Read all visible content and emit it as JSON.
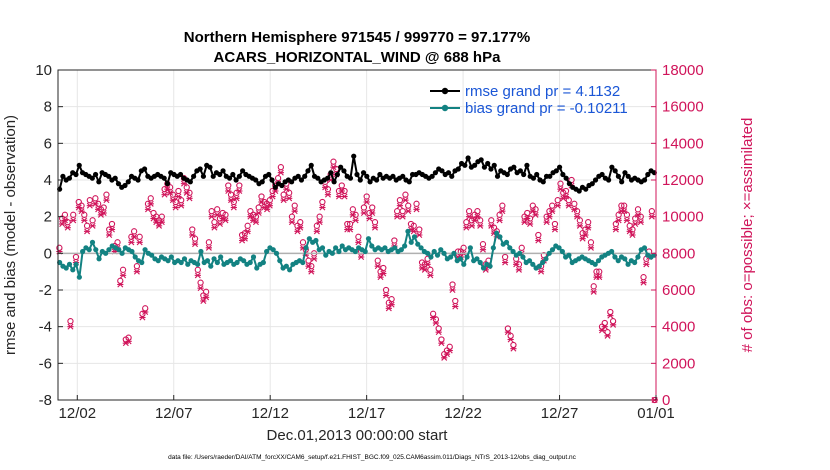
{
  "chart_data": {
    "type": "line",
    "title": "Northern Hemisphere 971545 / 999770 = 97.177%",
    "subtitle": "ACARS_HORIZONTAL_WIND @ 688 hPa",
    "xlabel": "Dec.01,2013 00:00:00 start",
    "ylabel_left": "rmse and bias (model - observation)",
    "ylabel_right": "# of obs: o=possible; ×=assimilated",
    "footnote": "data file: /Users/raeder/DAI/ATM_forcXX/CAM6_setup/f.e21.FHIST_BGC.f09_025.CAM6assim.011/Diags_NTrS_2013-12/obs_diag_output.nc",
    "x_ticks": [
      "12/02",
      "12/07",
      "12/12",
      "12/17",
      "12/22",
      "12/27",
      "01/01"
    ],
    "x_tick_days": [
      1,
      6,
      11,
      16,
      21,
      26,
      31
    ],
    "xlim_days": [
      0,
      31
    ],
    "ylim_left": [
      -8,
      10
    ],
    "yticks_left": [
      "-8",
      "-6",
      "-4",
      "-2",
      "0",
      "2",
      "4",
      "6",
      "8",
      "10"
    ],
    "ylim_right": [
      0,
      18000
    ],
    "yticks_right": [
      "0",
      "2000",
      "4000",
      "6000",
      "8000",
      "10000",
      "12000",
      "14000",
      "16000",
      "18000"
    ],
    "legend": [
      {
        "label": "rmse grand pr = 4.1132",
        "color": "#000000"
      },
      {
        "label": "bias grand pr = -0.10211",
        "color": "#138282"
      }
    ],
    "colors": {
      "rmse": "#000000",
      "bias": "#138282",
      "obs": "#d0145a",
      "zero_line": "#b0b0b0"
    },
    "rmse": [
      3.5,
      4.2,
      4.0,
      4.1,
      4.4,
      4.3,
      4.8,
      4.4,
      4.3,
      4.2,
      4.1,
      4.3,
      3.9,
      4.4,
      4.3,
      4.2,
      4.0,
      4.1,
      3.8,
      3.6,
      3.7,
      3.9,
      4.2,
      4.1,
      4.0,
      4.5,
      4.6,
      4.2,
      4.1,
      4.2,
      4.3,
      4.2,
      4.1,
      3.8,
      4.4,
      4.3,
      4.2,
      4.3,
      4.1,
      4.0,
      3.9,
      4.2,
      4.5,
      4.6,
      4.2,
      4.8,
      4.7,
      4.2,
      4.4,
      4.3,
      4.5,
      4.2,
      4.1,
      4.3,
      4.0,
      4.2,
      4.5,
      4.3,
      4.2,
      4.1,
      4.0,
      3.8,
      3.9,
      4.2,
      4.3,
      4.0,
      3.6,
      3.8,
      3.7,
      3.9,
      4.0,
      3.9,
      4.1,
      4.2,
      4.0,
      4.2,
      4.5,
      4.8,
      4.2,
      4.1,
      3.9,
      4.0,
      4.1,
      4.4,
      3.9,
      4.3,
      4.7,
      4.5,
      4.2,
      4.1,
      5.3,
      4.3,
      4.0,
      4.4,
      4.2,
      3.9,
      4.1,
      4.0,
      4.3,
      4.1,
      4.2,
      4.1,
      4.2,
      4.0,
      4.1,
      4.2,
      4.0,
      3.9,
      4.3,
      4.3,
      4.4,
      4.3,
      4.2,
      4.1,
      4.2,
      4.4,
      4.6,
      4.5,
      4.3,
      4.4,
      4.2,
      4.5,
      4.6,
      4.9,
      4.8,
      5.2,
      4.7,
      4.8,
      5.0,
      5.1,
      4.7,
      4.9,
      4.6,
      4.8,
      4.2,
      4.5,
      4.4,
      4.3,
      4.6,
      4.7,
      4.4,
      4.5,
      4.3,
      4.8,
      4.2,
      4.1,
      4.3,
      4.0,
      3.9,
      4.2,
      4.2,
      4.4,
      4.5,
      4.7,
      4.3,
      4.1,
      3.8,
      3.6,
      3.5,
      3.4,
      3.6,
      3.5,
      3.7,
      3.8,
      4.0,
      4.2,
      4.3,
      4.1,
      4.0,
      4.7,
      4.5,
      4.2,
      3.9,
      4.4,
      4.2,
      4.0,
      4.1,
      4.0,
      3.9,
      4.0,
      4.3,
      4.5,
      4.4
    ],
    "bias": [
      -0.5,
      -0.7,
      -0.8,
      -0.6,
      -0.9,
      -0.6,
      -1.3,
      0.1,
      0.3,
      0.2,
      0.6,
      0.2,
      -0.3,
      0.1,
      0.0,
      0.2,
      0.4,
      0.3,
      0.2,
      0.0,
      0.3,
      0.2,
      0.1,
      -0.2,
      -0.4,
      -0.5,
      0.2,
      0.0,
      -0.1,
      -0.3,
      -0.4,
      -0.2,
      -0.3,
      -0.4,
      -0.2,
      -0.5,
      -0.4,
      -0.5,
      -0.3,
      -0.6,
      -0.4,
      -0.5,
      -0.6,
      0.1,
      -0.5,
      -0.4,
      -0.7,
      -0.3,
      -0.5,
      -0.2,
      -0.6,
      -0.5,
      -0.4,
      -0.6,
      -0.5,
      -0.3,
      -0.4,
      -0.6,
      -0.5,
      -0.2,
      -0.8,
      -0.6,
      -0.5,
      0.1,
      0.3,
      0.2,
      0.0,
      -0.4,
      -0.8,
      -0.7,
      -0.9,
      -0.6,
      -0.5,
      -0.4,
      -0.5,
      0.3,
      0.8,
      0.6,
      0.7,
      0.2,
      0.3,
      -0.1,
      0.1,
      0.0,
      0.3,
      0.1,
      0.4,
      0.2,
      0.3,
      0.2,
      0.1,
      0.3,
      0.2,
      0.1,
      0.8,
      0.4,
      0.2,
      0.3,
      0.2,
      0.3,
      0.1,
      0.2,
      0.3,
      0.1,
      0.2,
      0.4,
      1.2,
      0.6,
      0.9,
      0.5,
      0.3,
      0.1,
      0.0,
      -0.2,
      0.1,
      -0.1,
      0.2,
      0.0,
      -0.3,
      -0.2,
      0.0,
      -0.4,
      -0.3,
      -0.6,
      -0.2,
      0.3,
      -0.4,
      -0.3,
      -0.5,
      -0.8,
      -0.6,
      -0.7,
      0.3,
      1.1,
      0.9,
      0.5,
      0.6,
      0.3,
      0.1,
      -0.1,
      0.0,
      -0.2,
      -0.5,
      -0.4,
      -0.6,
      -0.8,
      -0.7,
      -0.5,
      -0.3,
      0.0,
      0.2,
      0.4,
      0.3,
      0.1,
      -0.2,
      -0.1,
      -0.5,
      -0.4,
      -0.3,
      -0.2,
      -0.3,
      -0.4,
      -0.5,
      -0.6,
      -0.4,
      -0.2,
      -0.1,
      0.0,
      0.1,
      -0.2,
      -0.4,
      -0.2,
      -0.3,
      -0.6,
      -0.4,
      -0.5,
      -0.2,
      0.2,
      0.3,
      -0.1,
      -0.2,
      -0.1
    ],
    "obs_possible": [
      8300,
      9900,
      10100,
      9700,
      4300,
      10100,
      7800,
      10800,
      10600,
      10100,
      9500,
      10900,
      9800,
      11000,
      10700,
      10400,
      10500,
      11200,
      9300,
      9600,
      8400,
      8600,
      6500,
      7100,
      3300,
      3400,
      8900,
      9200,
      7300,
      8900,
      4700,
      5000,
      10700,
      11000,
      10200,
      10000,
      9800,
      10000,
      11500,
      11800,
      11600,
      11200,
      10800,
      11400,
      10900,
      12100,
      11600,
      11300,
      9300,
      8800,
      7100,
      6400,
      5700,
      5900,
      8600,
      10300,
      9700,
      10400,
      9900,
      10200,
      10100,
      11700,
      11200,
      10800,
      11300,
      11700,
      9000,
      9100,
      9500,
      10300,
      10100,
      10000,
      10500,
      11100,
      10800,
      10700,
      10900,
      11400,
      11700,
      12100,
      12700,
      11200,
      11800,
      11300,
      10000,
      10600,
      9500,
      9700,
      8600,
      8200,
      7600,
      7300,
      8000,
      9500,
      10000,
      10800,
      11900,
      11500,
      12300,
      13000,
      12600,
      11400,
      11700,
      11400,
      9600,
      9600,
      10400,
      10100,
      8900,
      8100,
      10500,
      11100,
      10200,
      10500,
      9700,
      7600,
      7000,
      7200,
      6000,
      5300,
      5500,
      8700,
      10300,
      10900,
      10300,
      11200,
      10600,
      9600,
      9500,
      10700,
      9300,
      7500,
      7400,
      7700,
      7100,
      4700,
      4400,
      3900,
      3300,
      2500,
      2700,
      2900,
      6300,
      5400,
      8100,
      8100,
      8300,
      9700,
      10300,
      9800,
      10100,
      10300,
      9800,
      8500,
      7400,
      7600,
      9800,
      9400,
      9200,
      10100,
      10600,
      7800,
      3900,
      3500,
      3000,
      7700,
      7400,
      8300,
      10000,
      10200,
      9900,
      10600,
      10400,
      9000,
      7300,
      7900,
      10000,
      10300,
      10600,
      9600,
      10900,
      11800,
      11300,
      11400,
      10900,
      12000,
      10700,
      10300,
      9800,
      9100,
      9300,
      9700,
      8600,
      6200,
      7000,
      7000,
      4000,
      4200,
      3700,
      4800,
      4300,
      9600,
      10100,
      10600,
      10600,
      10100,
      9500,
      9300,
      9900,
      10400,
      10000,
      6700,
      7700,
      8100,
      10300,
      0
    ],
    "obs_assimilated": [
      8100,
      9600,
      9800,
      9400,
      4000,
      9800,
      7500,
      10500,
      10300,
      9800,
      9200,
      10600,
      9500,
      10700,
      10400,
      10100,
      10200,
      10900,
      9000,
      9300,
      8100,
      8300,
      6300,
      6800,
      3100,
      3200,
      8600,
      8900,
      7000,
      8600,
      4500,
      4800,
      10400,
      10700,
      9900,
      9700,
      9500,
      9700,
      11200,
      11500,
      11300,
      10900,
      10500,
      11100,
      10600,
      11800,
      11300,
      11000,
      9000,
      8500,
      6800,
      6100,
      5400,
      5600,
      8300,
      10000,
      9400,
      10100,
      9600,
      9900,
      9800,
      11400,
      10900,
      10500,
      11000,
      11400,
      8700,
      8800,
      9200,
      10000,
      9800,
      9700,
      10200,
      10800,
      10500,
      10400,
      10600,
      11100,
      11400,
      11800,
      12400,
      10900,
      11500,
      11000,
      9700,
      10300,
      9200,
      9400,
      8300,
      7900,
      7300,
      7000,
      7700,
      9200,
      9700,
      10500,
      11600,
      11200,
      12000,
      12700,
      12300,
      11100,
      11400,
      11100,
      9300,
      9300,
      10100,
      9800,
      8600,
      7800,
      10200,
      10800,
      9900,
      10200,
      9400,
      7300,
      6700,
      6900,
      5700,
      5000,
      5200,
      8400,
      10000,
      10600,
      10000,
      10900,
      10300,
      9300,
      9200,
      10400,
      9000,
      7200,
      7100,
      7400,
      6800,
      4500,
      4200,
      3700,
      3100,
      2300,
      2500,
      2700,
      6000,
      5100,
      7800,
      7800,
      8000,
      9400,
      10000,
      9500,
      9800,
      10000,
      9500,
      8200,
      7100,
      7300,
      9500,
      9100,
      8900,
      9800,
      10300,
      7500,
      3700,
      3300,
      2800,
      7400,
      7100,
      8000,
      9700,
      9900,
      9600,
      10300,
      10100,
      8700,
      7000,
      7600,
      9700,
      10000,
      10300,
      9300,
      10600,
      11500,
      11000,
      11100,
      10600,
      11700,
      10400,
      10000,
      9500,
      8800,
      9000,
      9400,
      8300,
      5900,
      6700,
      6700,
      3800,
      4000,
      3500,
      4600,
      4100,
      9300,
      9800,
      10300,
      10300,
      9800,
      9200,
      9000,
      9600,
      10100,
      9700,
      6400,
      7400,
      7800,
      10000,
      0
    ]
  }
}
